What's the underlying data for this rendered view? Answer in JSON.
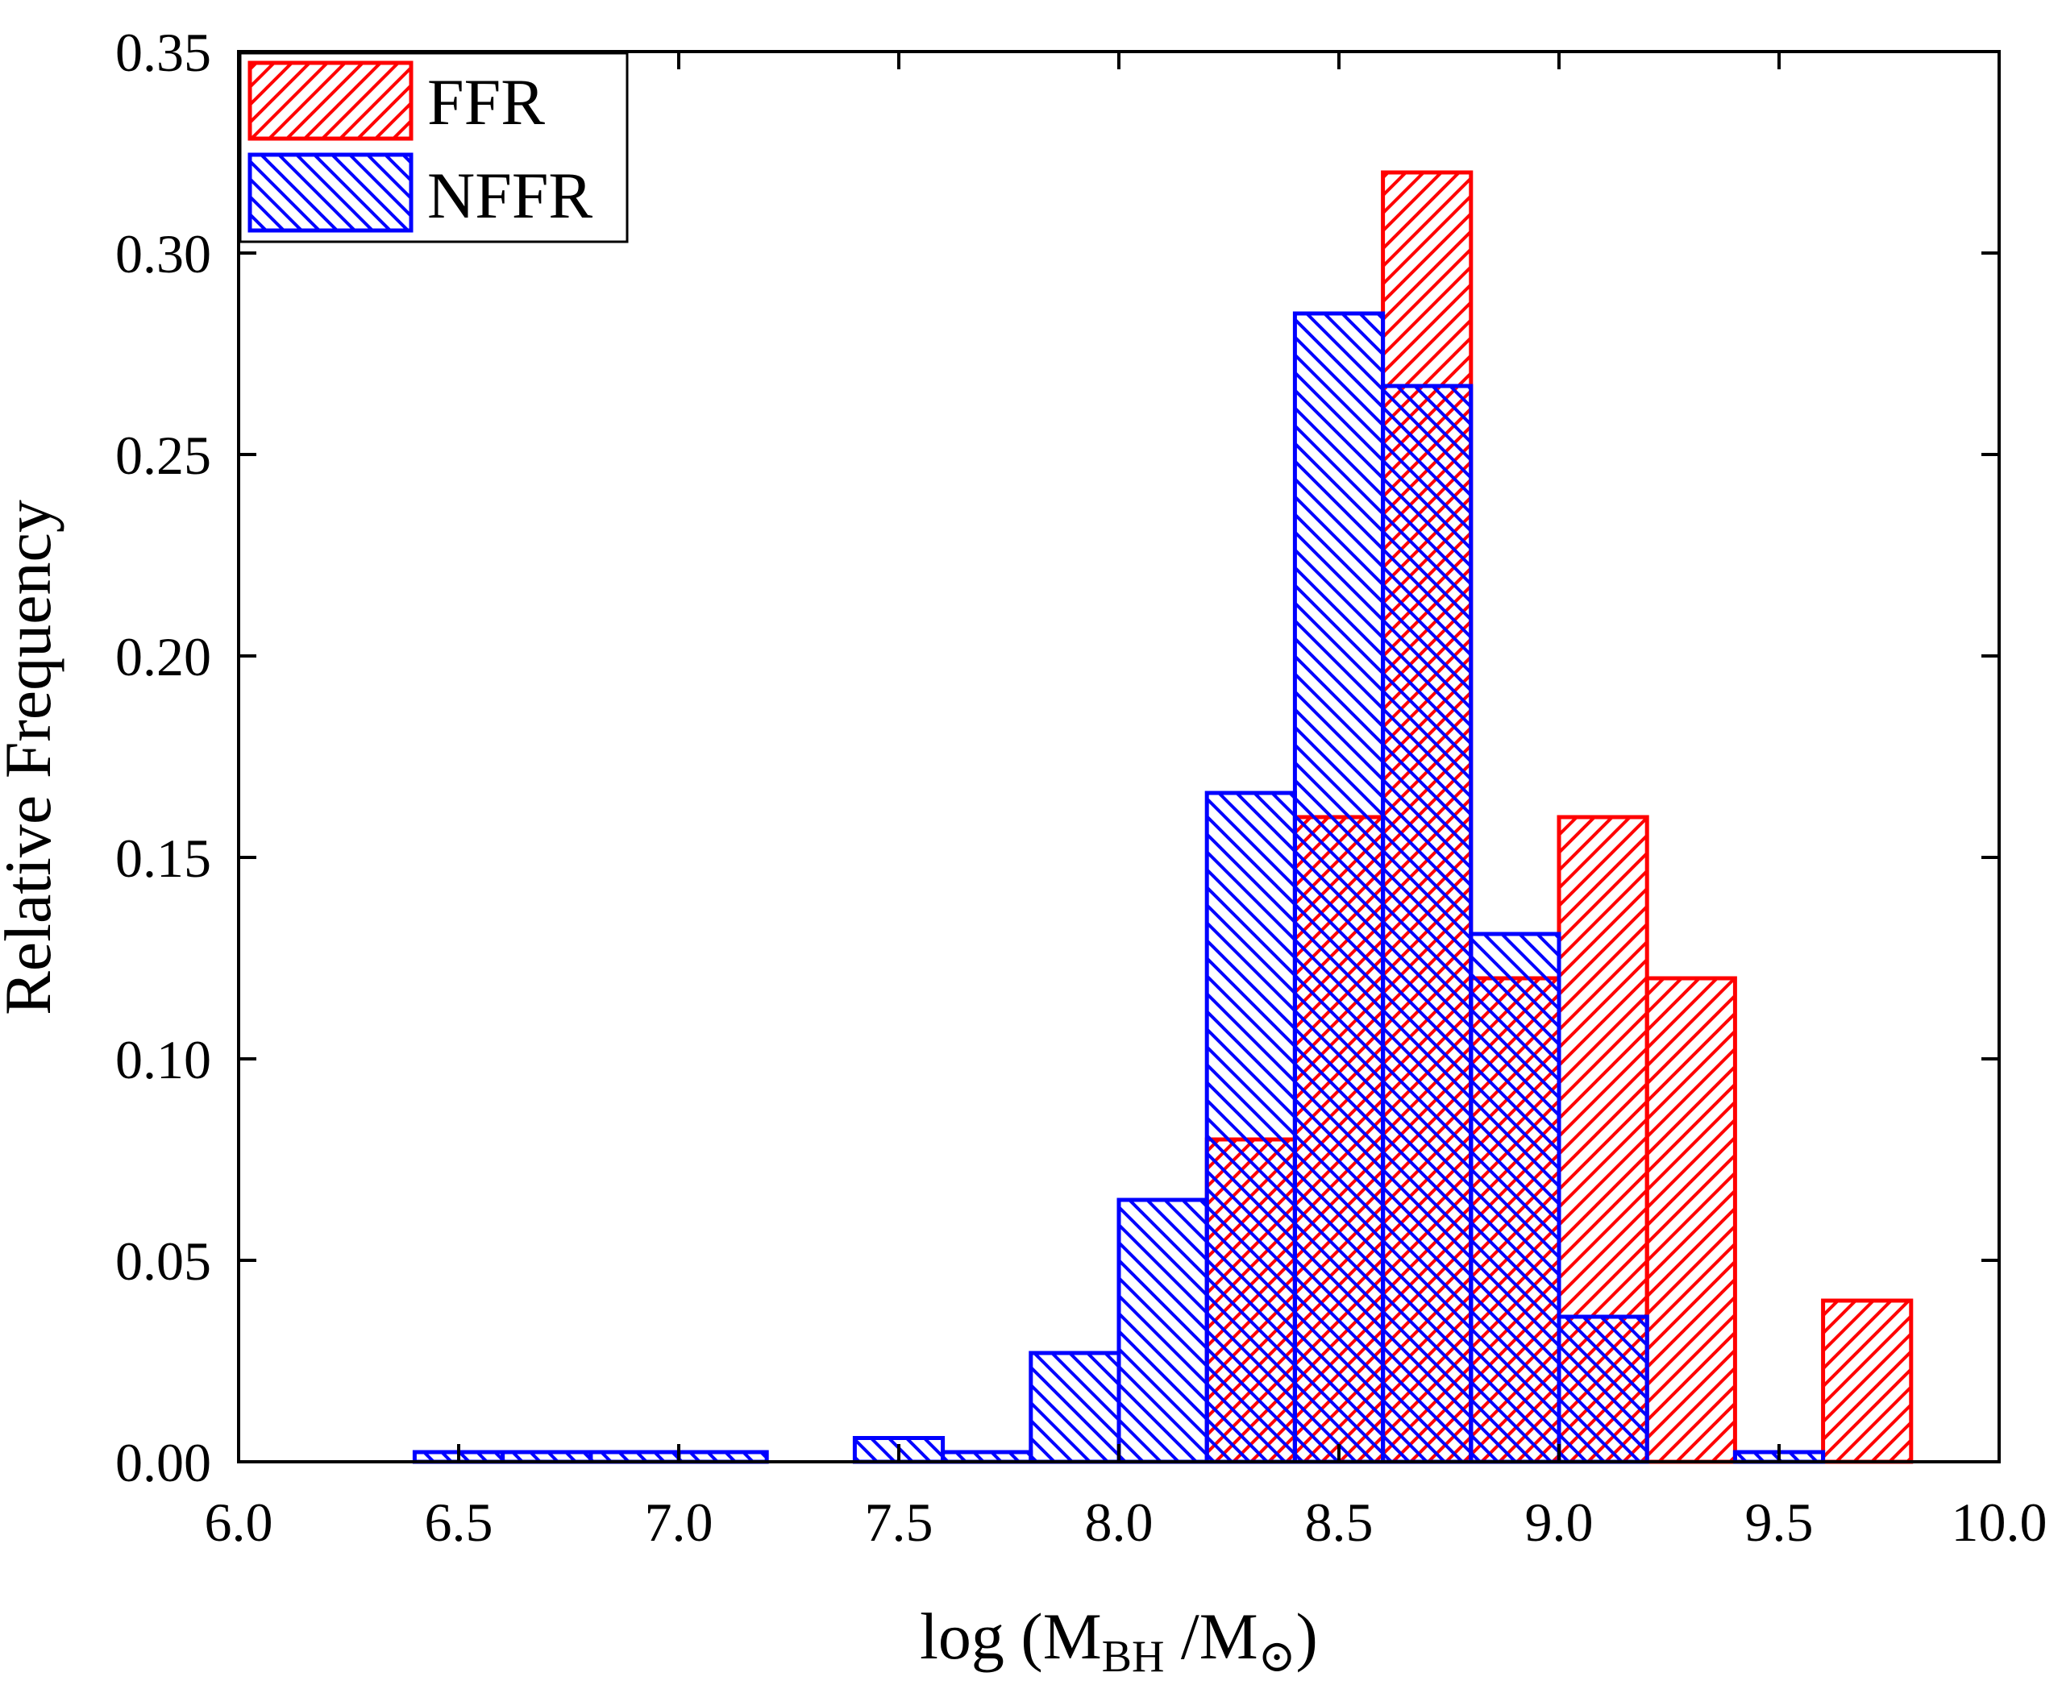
{
  "chart_data": {
    "type": "bar",
    "subtype": "overlapping-histogram",
    "title": "",
    "xlabel": {
      "prefix": "log (M",
      "sub1": "BH",
      "middle": " /M",
      "sub2": "⊙",
      "suffix": ")"
    },
    "ylabel": "Relative Frequency",
    "xlim": [
      6.0,
      10.0
    ],
    "ylim": [
      0.0,
      0.35
    ],
    "xticks": [
      "6.0",
      "6.5",
      "7.0",
      "7.5",
      "8.0",
      "8.5",
      "9.0",
      "9.5",
      "10.0"
    ],
    "yticks": [
      "0.00",
      "0.05",
      "0.10",
      "0.15",
      "0.20",
      "0.25",
      "0.30",
      "0.35"
    ],
    "bin_width": 0.2,
    "legend_position": "top-left",
    "series": [
      {
        "name": "FFR",
        "color": "#ff0000",
        "hatch": "forward-diagonal",
        "bins": [
          {
            "x0": 8.2,
            "x1": 8.4,
            "value": 0.08
          },
          {
            "x0": 8.4,
            "x1": 8.6,
            "value": 0.16
          },
          {
            "x0": 8.6,
            "x1": 8.8,
            "value": 0.32
          },
          {
            "x0": 8.8,
            "x1": 9.0,
            "value": 0.12
          },
          {
            "x0": 9.0,
            "x1": 9.2,
            "value": 0.16
          },
          {
            "x0": 9.2,
            "x1": 9.4,
            "value": 0.12
          },
          {
            "x0": 9.6,
            "x1": 9.8,
            "value": 0.04
          }
        ]
      },
      {
        "name": "NFFR",
        "color": "#0000ff",
        "hatch": "back-diagonal",
        "bins": [
          {
            "x0": 6.4,
            "x1": 6.6,
            "value": 0.0024
          },
          {
            "x0": 6.6,
            "x1": 6.8,
            "value": 0.0024
          },
          {
            "x0": 6.8,
            "x1": 7.0,
            "value": 0.0024
          },
          {
            "x0": 7.0,
            "x1": 7.2,
            "value": 0.0024
          },
          {
            "x0": 7.4,
            "x1": 7.6,
            "value": 0.0059
          },
          {
            "x0": 7.6,
            "x1": 7.8,
            "value": 0.0024
          },
          {
            "x0": 7.8,
            "x1": 8.0,
            "value": 0.027
          },
          {
            "x0": 8.0,
            "x1": 8.2,
            "value": 0.065
          },
          {
            "x0": 8.2,
            "x1": 8.4,
            "value": 0.166
          },
          {
            "x0": 8.4,
            "x1": 8.6,
            "value": 0.285
          },
          {
            "x0": 8.6,
            "x1": 8.8,
            "value": 0.267
          },
          {
            "x0": 8.8,
            "x1": 9.0,
            "value": 0.131
          },
          {
            "x0": 9.0,
            "x1": 9.2,
            "value": 0.036
          },
          {
            "x0": 9.4,
            "x1": 9.6,
            "value": 0.0024
          }
        ]
      }
    ]
  }
}
